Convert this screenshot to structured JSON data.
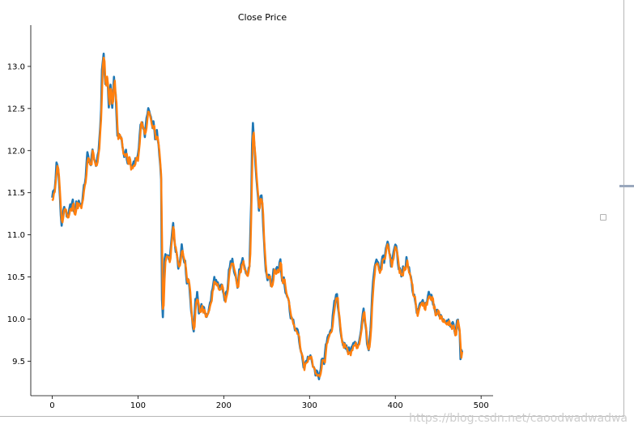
{
  "chart_data": {
    "type": "line",
    "title": "Close Price",
    "xlabel": "",
    "ylabel": "",
    "xlim": [
      -25,
      514
    ],
    "ylim": [
      9.09,
      13.49
    ],
    "xticks": [
      0,
      100,
      200,
      300,
      400,
      500
    ],
    "yticks": [
      9.5,
      10.0,
      10.5,
      11.0,
      11.5,
      12.0,
      12.5,
      13.0
    ],
    "grid": false,
    "legend": "empty box at right",
    "colors": [
      "#1f77b4",
      "#ff7f0e"
    ],
    "keypoints": [
      [
        0,
        11.47
      ],
      [
        3,
        11.55
      ],
      [
        5,
        11.83
      ],
      [
        7,
        11.78
      ],
      [
        9,
        11.45
      ],
      [
        11,
        11.1
      ],
      [
        13,
        11.3
      ],
      [
        16,
        11.3
      ],
      [
        18,
        11.18
      ],
      [
        21,
        11.33
      ],
      [
        24,
        11.38
      ],
      [
        26,
        11.24
      ],
      [
        28,
        11.36
      ],
      [
        31,
        11.4
      ],
      [
        34,
        11.35
      ],
      [
        37,
        11.55
      ],
      [
        39,
        11.7
      ],
      [
        41,
        11.95
      ],
      [
        43,
        11.9
      ],
      [
        45,
        11.8
      ],
      [
        47,
        12.05
      ],
      [
        49,
        11.85
      ],
      [
        51,
        11.82
      ],
      [
        53,
        11.95
      ],
      [
        55,
        12.1
      ],
      [
        57,
        12.5
      ],
      [
        58,
        12.95
      ],
      [
        60,
        13.15
      ],
      [
        62,
        12.75
      ],
      [
        64,
        12.9
      ],
      [
        66,
        12.55
      ],
      [
        68,
        12.78
      ],
      [
        70,
        12.5
      ],
      [
        72,
        12.88
      ],
      [
        74,
        12.65
      ],
      [
        76,
        12.2
      ],
      [
        78,
        12.15
      ],
      [
        80,
        12.2
      ],
      [
        82,
        12.05
      ],
      [
        84,
        11.9
      ],
      [
        86,
        12.0
      ],
      [
        88,
        11.85
      ],
      [
        90,
        11.95
      ],
      [
        92,
        11.78
      ],
      [
        94,
        11.82
      ],
      [
        97,
        11.88
      ],
      [
        100,
        11.95
      ],
      [
        102,
        12.2
      ],
      [
        104,
        12.35
      ],
      [
        106,
        12.25
      ],
      [
        108,
        12.2
      ],
      [
        110,
        12.35
      ],
      [
        112,
        12.5
      ],
      [
        114,
        12.42
      ],
      [
        116,
        12.3
      ],
      [
        118,
        12.32
      ],
      [
        120,
        12.15
      ],
      [
        122,
        12.2
      ],
      [
        124,
        12.05
      ],
      [
        126,
        11.8
      ],
      [
        127,
        11.65
      ],
      [
        128,
        10.25
      ],
      [
        129,
        10.05
      ],
      [
        131,
        10.72
      ],
      [
        133,
        10.75
      ],
      [
        135,
        10.8
      ],
      [
        137,
        10.7
      ],
      [
        139,
        10.95
      ],
      [
        141,
        11.18
      ],
      [
        143,
        10.85
      ],
      [
        145,
        10.82
      ],
      [
        147,
        10.6
      ],
      [
        149,
        10.72
      ],
      [
        151,
        10.85
      ],
      [
        153,
        10.75
      ],
      [
        155,
        10.65
      ],
      [
        157,
        10.45
      ],
      [
        159,
        10.5
      ],
      [
        161,
        10.25
      ],
      [
        163,
        10.0
      ],
      [
        165,
        9.85
      ],
      [
        167,
        10.2
      ],
      [
        169,
        10.28
      ],
      [
        171,
        10.1
      ],
      [
        174,
        10.15
      ],
      [
        177,
        10.1
      ],
      [
        180,
        10.05
      ],
      [
        183,
        10.12
      ],
      [
        186,
        10.3
      ],
      [
        189,
        10.48
      ],
      [
        192,
        10.42
      ],
      [
        195,
        10.35
      ],
      [
        198,
        10.4
      ],
      [
        201,
        10.22
      ],
      [
        204,
        10.35
      ],
      [
        206,
        10.55
      ],
      [
        208,
        10.65
      ],
      [
        210,
        10.75
      ],
      [
        212,
        10.6
      ],
      [
        214,
        10.5
      ],
      [
        216,
        10.38
      ],
      [
        218,
        10.55
      ],
      [
        220,
        10.62
      ],
      [
        222,
        10.68
      ],
      [
        224,
        10.6
      ],
      [
        226,
        10.55
      ],
      [
        228,
        10.52
      ],
      [
        230,
        10.65
      ],
      [
        232,
        11.4
      ],
      [
        233,
        12.1
      ],
      [
        234,
        12.3
      ],
      [
        235,
        12.15
      ],
      [
        237,
        11.85
      ],
      [
        239,
        11.55
      ],
      [
        241,
        11.25
      ],
      [
        243,
        11.5
      ],
      [
        245,
        11.35
      ],
      [
        247,
        10.9
      ],
      [
        249,
        10.6
      ],
      [
        251,
        10.5
      ],
      [
        253,
        10.55
      ],
      [
        255,
        10.4
      ],
      [
        258,
        10.55
      ],
      [
        261,
        10.6
      ],
      [
        264,
        10.6
      ],
      [
        266,
        10.7
      ],
      [
        268,
        10.45
      ],
      [
        270,
        10.5
      ],
      [
        272,
        10.35
      ],
      [
        275,
        10.25
      ],
      [
        278,
        10.05
      ],
      [
        281,
        9.95
      ],
      [
        284,
        9.88
      ],
      [
        287,
        9.82
      ],
      [
        290,
        9.6
      ],
      [
        293,
        9.45
      ],
      [
        296,
        9.5
      ],
      [
        299,
        9.55
      ],
      [
        302,
        9.52
      ],
      [
        305,
        9.4
      ],
      [
        308,
        9.35
      ],
      [
        311,
        9.32
      ],
      [
        314,
        9.5
      ],
      [
        317,
        9.48
      ],
      [
        320,
        9.75
      ],
      [
        323,
        9.85
      ],
      [
        326,
        9.9
      ],
      [
        328,
        10.1
      ],
      [
        330,
        10.25
      ],
      [
        332,
        10.3
      ],
      [
        334,
        10.05
      ],
      [
        336,
        9.9
      ],
      [
        338,
        9.75
      ],
      [
        340,
        9.7
      ],
      [
        343,
        9.65
      ],
      [
        346,
        9.62
      ],
      [
        349,
        9.65
      ],
      [
        352,
        9.72
      ],
      [
        355,
        9.68
      ],
      [
        358,
        9.75
      ],
      [
        361,
        9.95
      ],
      [
        363,
        10.12
      ],
      [
        365,
        9.95
      ],
      [
        367,
        9.7
      ],
      [
        369,
        9.6
      ],
      [
        371,
        9.85
      ],
      [
        373,
        10.25
      ],
      [
        375,
        10.55
      ],
      [
        377,
        10.65
      ],
      [
        379,
        10.72
      ],
      [
        381,
        10.6
      ],
      [
        383,
        10.58
      ],
      [
        385,
        10.75
      ],
      [
        387,
        10.7
      ],
      [
        389,
        10.85
      ],
      [
        391,
        10.95
      ],
      [
        393,
        10.78
      ],
      [
        395,
        10.65
      ],
      [
        397,
        10.72
      ],
      [
        399,
        10.85
      ],
      [
        401,
        10.88
      ],
      [
        403,
        10.68
      ],
      [
        405,
        10.58
      ],
      [
        407,
        10.5
      ],
      [
        409,
        10.6
      ],
      [
        411,
        10.58
      ],
      [
        413,
        10.7
      ],
      [
        415,
        10.65
      ],
      [
        417,
        10.5
      ],
      [
        419,
        10.45
      ],
      [
        421,
        10.3
      ],
      [
        423,
        10.25
      ],
      [
        425,
        10.05
      ],
      [
        427,
        10.12
      ],
      [
        429,
        10.15
      ],
      [
        431,
        10.22
      ],
      [
        433,
        10.18
      ],
      [
        435,
        10.15
      ],
      [
        437,
        10.2
      ],
      [
        439,
        10.3
      ],
      [
        441,
        10.28
      ],
      [
        443,
        10.22
      ],
      [
        445,
        10.18
      ],
      [
        447,
        10.05
      ],
      [
        449,
        10.1
      ],
      [
        452,
        10.05
      ],
      [
        455,
        10.02
      ],
      [
        458,
        9.98
      ],
      [
        461,
        10.0
      ],
      [
        464,
        9.95
      ],
      [
        467,
        9.92
      ],
      [
        470,
        9.85
      ],
      [
        473,
        10.0
      ],
      [
        475,
        9.85
      ],
      [
        476,
        9.55
      ],
      [
        477,
        9.65
      ],
      [
        478,
        9.6
      ]
    ]
  },
  "watermark": "https://blog.csdn.net/caoodwadwadwa"
}
